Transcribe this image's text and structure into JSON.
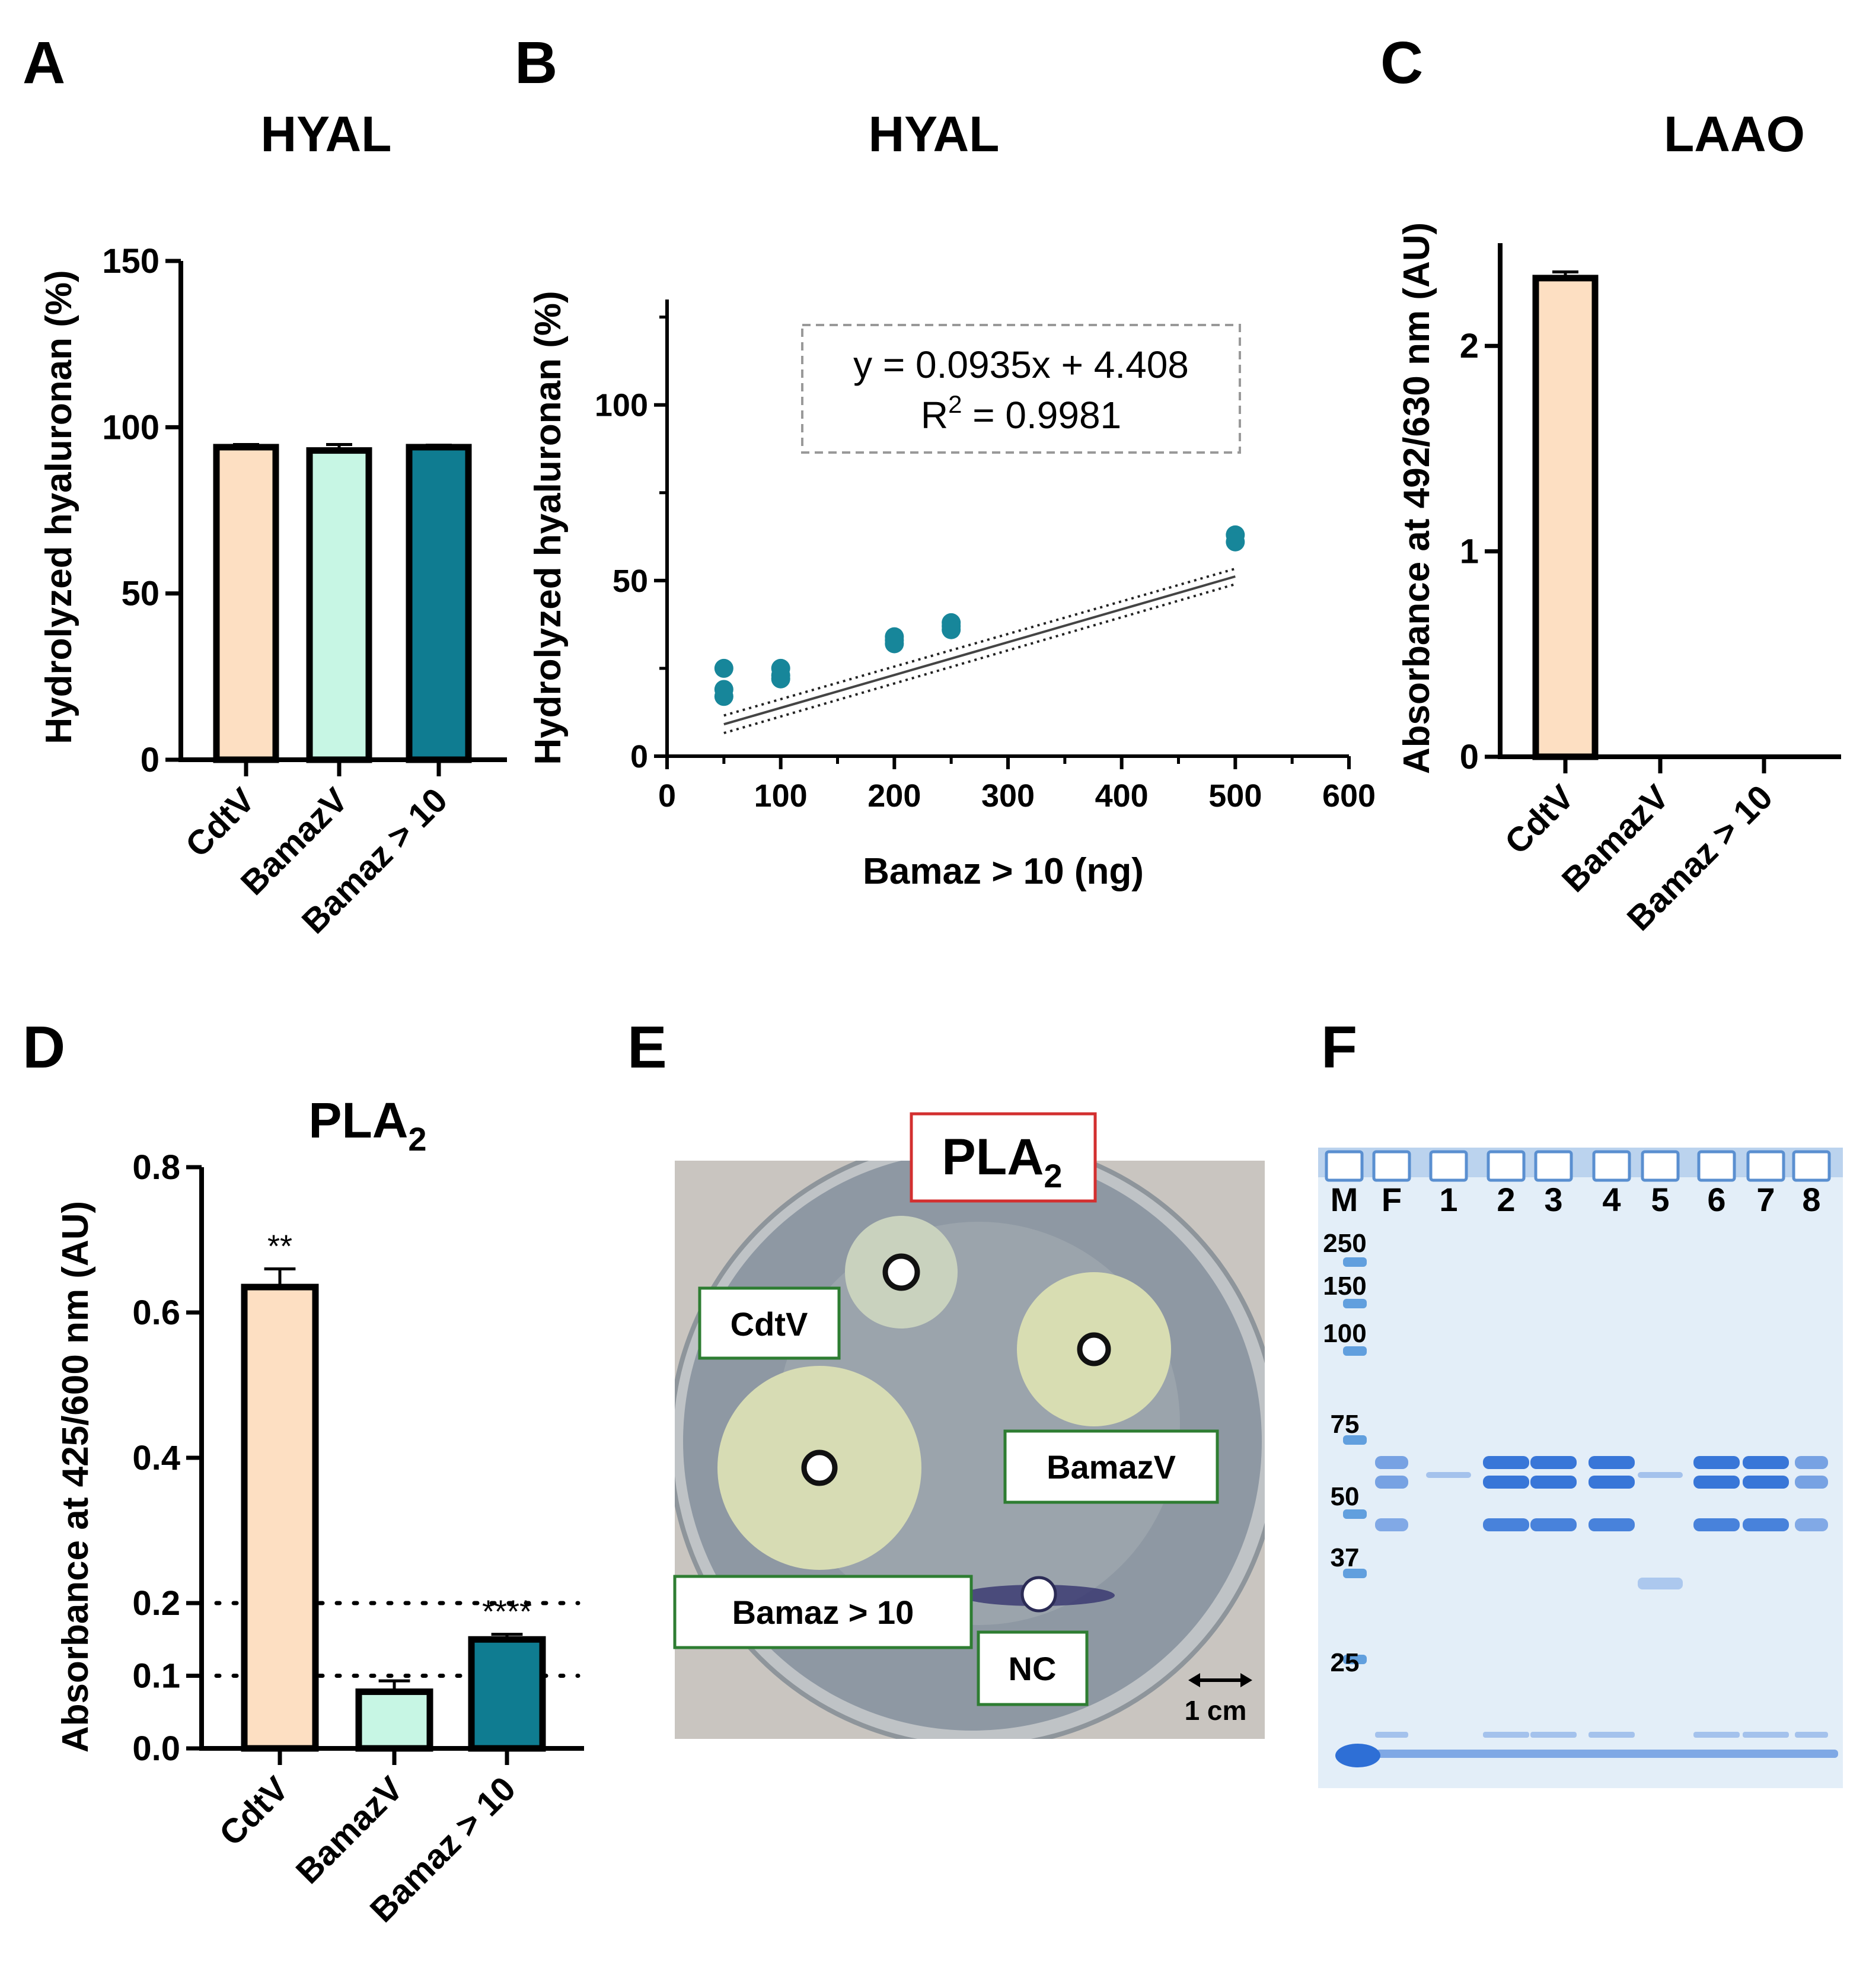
{
  "colors": {
    "cdtv": "#FDDFC2",
    "bamazv": "#C7F6E4",
    "bamaz10": "#0F7C91",
    "points": "#17869A",
    "plate_bg": "#C9C5C0",
    "agar": "#8C96A1",
    "halo": "#D6DCB0",
    "gel_bg": "#E3EEF8",
    "band": "#2E6FD6",
    "marker": "#4A90D9",
    "pla2_box": "#D32F2F",
    "label_box": "#2E7D32"
  },
  "panels": {
    "A": "A",
    "B": "B",
    "C": "C",
    "D": "D",
    "E": "E",
    "F": "F"
  },
  "chart_data": [
    {
      "id": "A",
      "type": "bar",
      "title": "HYAL",
      "xlabel": "",
      "ylabel": "Hydrolyzed hyaluronan (%)",
      "categories": [
        "CdtV",
        "BamazV",
        "Bamaz > 10"
      ],
      "values": [
        94,
        93,
        94
      ],
      "errors": [
        0.8,
        1.8,
        0.6
      ],
      "ylim": [
        0,
        150
      ],
      "yticks": [
        0,
        50,
        100,
        150
      ],
      "ytick_labels": [
        "0",
        "50",
        "100",
        "150"
      ]
    },
    {
      "id": "B",
      "type": "scatter",
      "title": "HYAL",
      "xlabel": "Bamaz > 10 (ng)",
      "ylabel": "Hydrolyzed hyaluronan (%)",
      "xlim": [
        0,
        600
      ],
      "ylim": [
        0,
        130
      ],
      "xticks": [
        0,
        100,
        200,
        300,
        400,
        500,
        600
      ],
      "xtick_labels": [
        "0",
        "100",
        "200",
        "300",
        "400",
        "500",
        "600"
      ],
      "yticks": [
        0,
        50,
        100
      ],
      "ytick_labels": [
        "0",
        "50",
        "100"
      ],
      "points": [
        {
          "x": 50,
          "y": 25
        },
        {
          "x": 50,
          "y": 19
        },
        {
          "x": 50,
          "y": 17
        },
        {
          "x": 100,
          "y": 25
        },
        {
          "x": 100,
          "y": 23
        },
        {
          "x": 100,
          "y": 22
        },
        {
          "x": 200,
          "y": 34
        },
        {
          "x": 200,
          "y": 33
        },
        {
          "x": 200,
          "y": 32
        },
        {
          "x": 250,
          "y": 38
        },
        {
          "x": 250,
          "y": 37
        },
        {
          "x": 250,
          "y": 36
        },
        {
          "x": 500,
          "y": 63
        },
        {
          "x": 500,
          "y": 61
        }
      ],
      "fit": {
        "slope": 0.0935,
        "intercept": 4.408,
        "x_range": [
          50,
          500
        ]
      },
      "equation": "y = 0.0935x + 4.408",
      "r2_prefix": "R",
      "r2_sup": "2",
      "r2_value": " = 0.9981"
    },
    {
      "id": "C",
      "type": "bar",
      "title": "LAAO",
      "xlabel": "",
      "ylabel": "Absorbance at 492/630 nm (AU)",
      "categories": [
        "CdtV",
        "BamazV",
        "Bamaz > 10"
      ],
      "values": [
        2.33,
        0.0,
        0.0
      ],
      "errors": [
        0.03,
        0,
        0
      ],
      "ylim": [
        0,
        2.5
      ],
      "yticks": [
        0,
        1,
        2
      ],
      "ytick_labels": [
        "0",
        "1",
        "2"
      ]
    },
    {
      "id": "D",
      "type": "bar",
      "title": "PLA",
      "title_sub": "2",
      "xlabel": "",
      "ylabel": "Absorbance at 425/600 nm (AU)",
      "categories": [
        "CdtV",
        "BamazV",
        "Bamaz > 10"
      ],
      "values": [
        0.635,
        0.078,
        0.15
      ],
      "errors": [
        0.025,
        0.015,
        0.007
      ],
      "significance": [
        "**",
        "",
        "****"
      ],
      "ylim": [
        0,
        0.8
      ],
      "yticks": [
        0,
        0.1,
        0.2,
        0.4,
        0.6,
        0.8
      ],
      "ytick_labels": [
        "0.0",
        "0.1",
        "0.2",
        "0.4",
        "0.6",
        "0.8"
      ],
      "reference_lines": [
        0.1,
        0.2
      ]
    }
  ],
  "plate": {
    "title": "PLA",
    "title_sub": "2",
    "labels": [
      "CdtV",
      "BamazV",
      "Bamaz > 10",
      "NC"
    ],
    "scale_bar": "1 cm"
  },
  "gel": {
    "lanes": [
      "M",
      "F",
      "1",
      "2",
      "3",
      "4",
      "5",
      "6",
      "7",
      "8"
    ],
    "markers": [
      "250",
      "150",
      "100",
      "75",
      "50",
      "37",
      "25"
    ]
  }
}
